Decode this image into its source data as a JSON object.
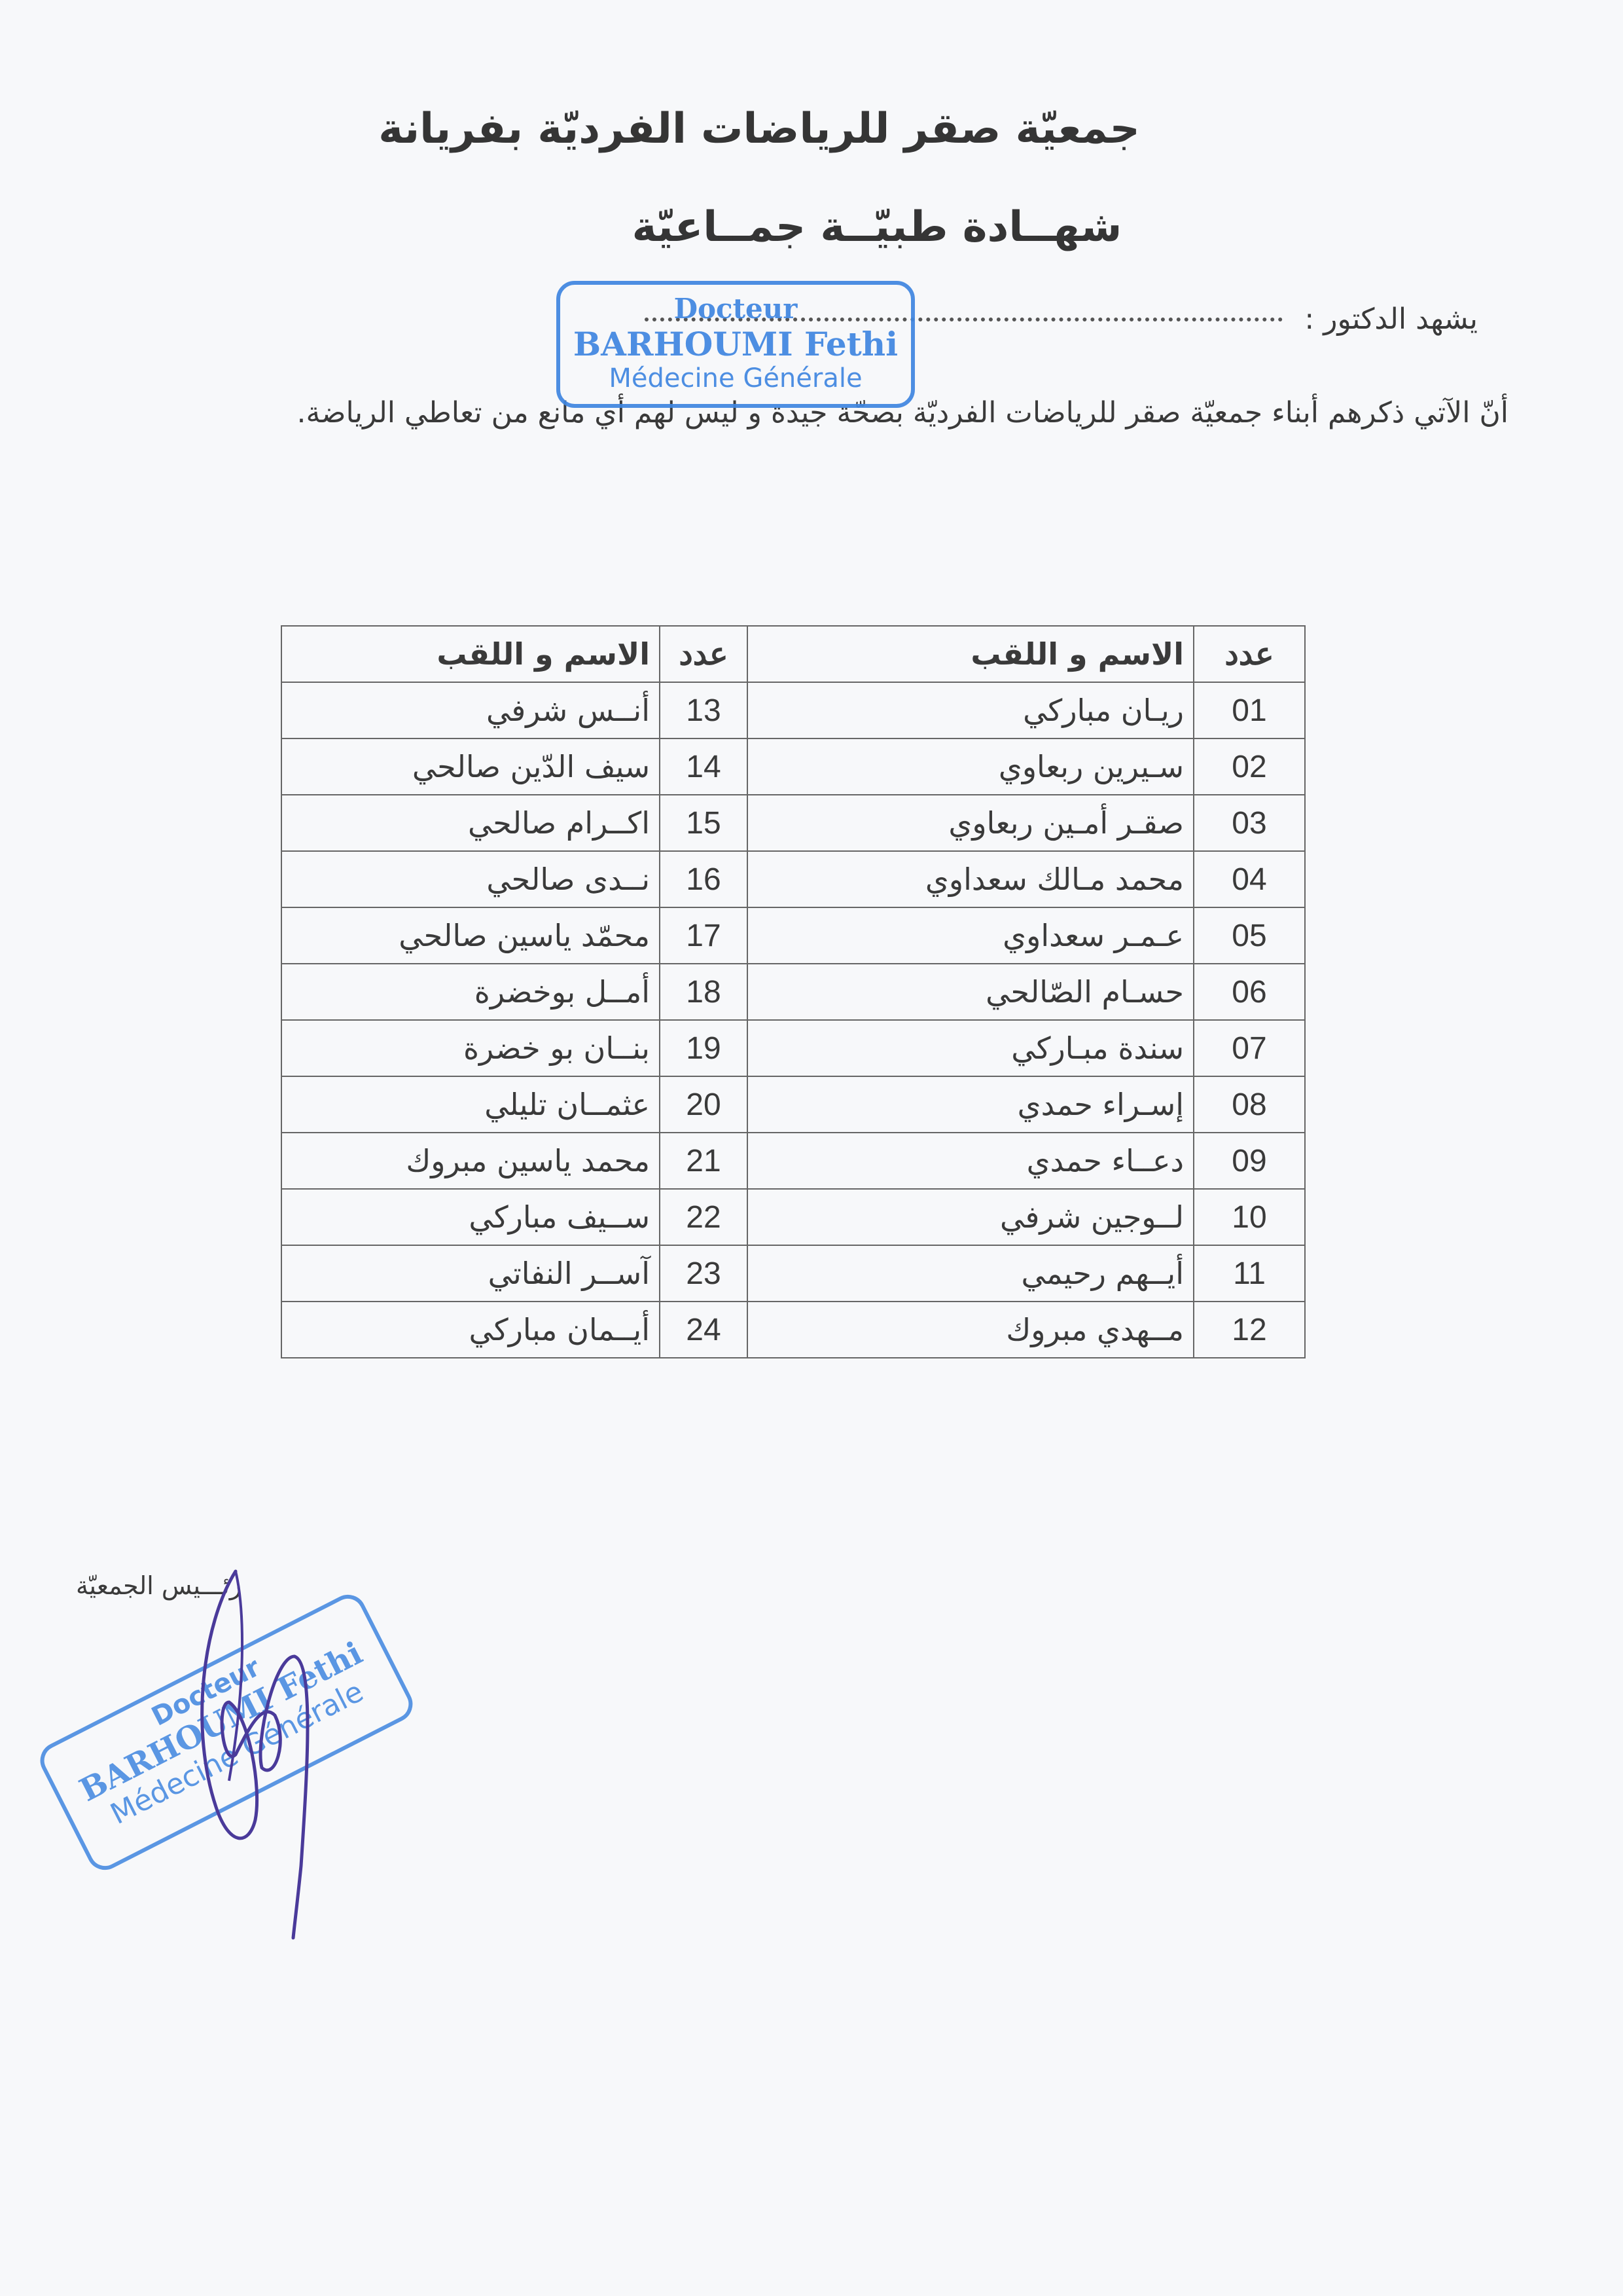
{
  "header": {
    "organization": "جمعيّة صقر للرياضات الفرديّة بفريانة",
    "document_title": "شهــادة طبيّــة جمــاعيّة"
  },
  "body": {
    "doctor_label": "يشهد الدكتور :",
    "statement": "أنّ الآتي ذكرهم أبناء جمعيّة صقر للرياضات الفرديّة بصحّة جيدة و ليس لهم أي مانع من تعاطي الرياضة."
  },
  "table": {
    "headers": {
      "number": "عدد",
      "name": "الاسم و اللقب"
    },
    "left_block": [
      {
        "n": "01",
        "name": "ريـان مباركي"
      },
      {
        "n": "02",
        "name": "سـيرين ربعاوي"
      },
      {
        "n": "03",
        "name": "صقـر أمـين ربعاوي"
      },
      {
        "n": "04",
        "name": "محمد مـالك سعداوي"
      },
      {
        "n": "05",
        "name": "عـمـر سعداوي"
      },
      {
        "n": "06",
        "name": "حسـام الصّالحي"
      },
      {
        "n": "07",
        "name": "سندة مبـاركي"
      },
      {
        "n": "08",
        "name": "إسـراء حمدي"
      },
      {
        "n": "09",
        "name": "دعــاء حمدي"
      },
      {
        "n": "10",
        "name": "لــوجين شرفي"
      },
      {
        "n": "11",
        "name": "أيــهم رحيمي"
      },
      {
        "n": "12",
        "name": "مــهدي مبروك"
      }
    ],
    "right_block": [
      {
        "n": "13",
        "name": "أنــس شرفي"
      },
      {
        "n": "14",
        "name": "سيف الدّين صالحي"
      },
      {
        "n": "15",
        "name": "اكــرام صالحي"
      },
      {
        "n": "16",
        "name": "نــدى صالحي"
      },
      {
        "n": "17",
        "name": "محمّد ياسين صالحي"
      },
      {
        "n": "18",
        "name": "أمــل بوخضرة"
      },
      {
        "n": "19",
        "name": "بنــان بو خضرة"
      },
      {
        "n": "20",
        "name": "عثمــان تليلي"
      },
      {
        "n": "21",
        "name": "محمد ياسين مبروك"
      },
      {
        "n": "22",
        "name": "ســيف مباركي"
      },
      {
        "n": "23",
        "name": "آســر النفاتي"
      },
      {
        "n": "24",
        "name": "أيــمان مباركي"
      }
    ]
  },
  "footer": {
    "president_label": "رئـــيس الجمعيّة"
  },
  "stamp": {
    "line1": "Docteur",
    "line2": "BARHOUMI Fethi",
    "line3": "Médecine Générale",
    "color": "#3f86e0"
  },
  "signature_color": "#4a3a9a"
}
